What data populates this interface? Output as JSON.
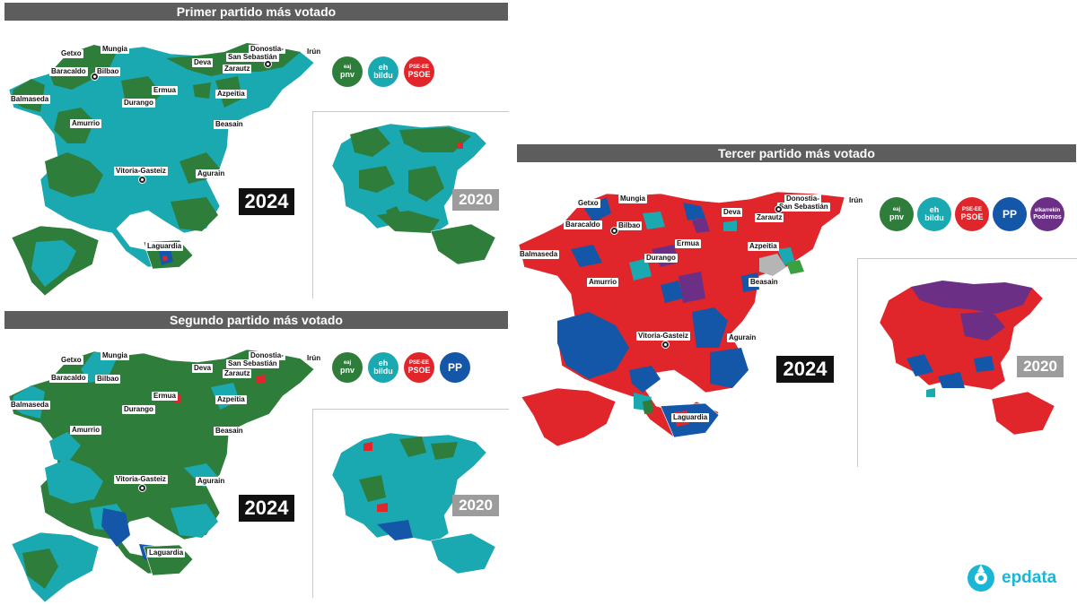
{
  "panels": {
    "first": {
      "title": "Primer partido más votado",
      "year_main": "2024",
      "year_prev": "2020",
      "legend": [
        "pnv",
        "bildu",
        "psoe"
      ]
    },
    "second": {
      "title": "Segundo partido más votado",
      "year_main": "2024",
      "year_prev": "2020",
      "legend": [
        "pnv",
        "bildu",
        "psoe",
        "pp"
      ]
    },
    "third": {
      "title": "Tercer partido más votado",
      "year_main": "2024",
      "year_prev": "2020",
      "legend": [
        "pnv",
        "bildu",
        "psoe",
        "pp",
        "podemos"
      ]
    }
  },
  "cities": {
    "getxo": "Getxo",
    "mungia": "Mungia",
    "donostia_1": "Donostia-",
    "donostia_2": "San Sebastián",
    "irun": "Irún",
    "baracaldo": "Baracaldo",
    "bilbao": "Bilbao",
    "deva": "Deva",
    "zarautz": "Zarautz",
    "balmaseda": "Balmaseda",
    "ermua": "Ermua",
    "azpeitia": "Azpeitia",
    "durango": "Durango",
    "amurrio": "Amurrio",
    "beasain": "Beasain",
    "vitoria": "Vitoria-Gasteiz",
    "agurain": "Agurain",
    "laguardia": "Laguardia"
  },
  "parties": {
    "pnv": {
      "line1": "eaj",
      "line2": "pnv",
      "color": "#2e7d3a"
    },
    "bildu": {
      "line1": "eh",
      "line2": "bildu",
      "color": "#1aa9b0"
    },
    "psoe": {
      "line1": "PSE-EE",
      "line2": "PSOE",
      "color": "#e0252b"
    },
    "pp": {
      "line1": "PP",
      "line2": "",
      "color": "#1457a8"
    },
    "podemos": {
      "line1": "elkarrekin",
      "line2": "Podemos",
      "color": "#6c2f86"
    }
  },
  "brand": "epdata"
}
